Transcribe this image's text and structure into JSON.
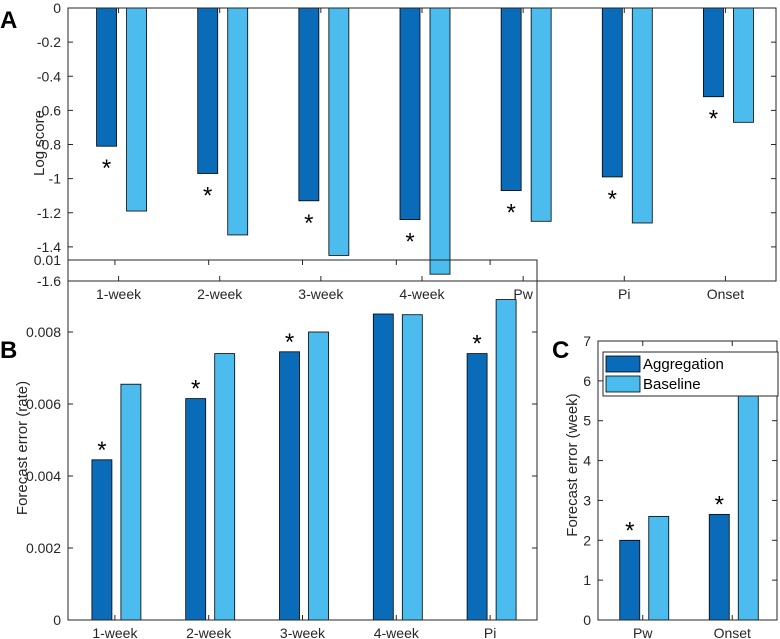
{
  "colors": {
    "aggregation": "#0a6cb8",
    "baseline": "#4cbcee"
  },
  "legend": {
    "aggregation": "Aggregation",
    "baseline": "Baseline"
  },
  "star_symbol": "*",
  "chart_data": [
    {
      "panel": "A",
      "type": "bar",
      "categories": [
        "1-week",
        "2-week",
        "3-week",
        "4-week",
        "Pw",
        "Pi",
        "Onset"
      ],
      "series": [
        {
          "name": "Aggregation",
          "values": [
            -0.81,
            -0.97,
            -1.13,
            -1.24,
            -1.07,
            -0.99,
            -0.52
          ]
        },
        {
          "name": "Baseline",
          "values": [
            -1.19,
            -1.33,
            -1.45,
            -1.56,
            -1.25,
            -1.26,
            -0.67
          ]
        }
      ],
      "significant": [
        true,
        true,
        true,
        true,
        true,
        true,
        true
      ],
      "ylabel": "Log score",
      "xlabel": "",
      "ylim": [
        -1.6,
        0
      ],
      "yticks": [
        "0",
        "-0.2",
        "-0.4",
        "-0.6",
        "-0.8",
        "-1",
        "-1.2",
        "-1.4",
        "-1.6"
      ]
    },
    {
      "panel": "B",
      "type": "bar",
      "categories": [
        "1-week",
        "2-week",
        "3-week",
        "4-week",
        "Pi"
      ],
      "series": [
        {
          "name": "Aggregation",
          "values": [
            0.00445,
            0.00615,
            0.00745,
            0.0085,
            0.0074
          ]
        },
        {
          "name": "Baseline",
          "values": [
            0.00655,
            0.0074,
            0.008,
            0.00848,
            0.0089
          ]
        }
      ],
      "significant": [
        true,
        true,
        true,
        false,
        true
      ],
      "ylabel": "Forecast error (rate)",
      "xlabel": "",
      "ylim": [
        0,
        0.01
      ],
      "yticks": [
        "0",
        "0.002",
        "0.004",
        "0.006",
        "0.008",
        "0.01"
      ]
    },
    {
      "panel": "C",
      "type": "bar",
      "categories": [
        "Pw",
        "Onset"
      ],
      "series": [
        {
          "name": "Aggregation",
          "values": [
            2.0,
            2.65
          ]
        },
        {
          "name": "Baseline",
          "values": [
            2.6,
            6.08
          ]
        }
      ],
      "significant": [
        true,
        true
      ],
      "ylabel": "Forecast error (week)",
      "xlabel": "",
      "ylim": [
        0,
        7
      ],
      "yticks": [
        "0",
        "1",
        "2",
        "3",
        "4",
        "5",
        "6",
        "7"
      ],
      "legend_position": "top-left"
    }
  ]
}
